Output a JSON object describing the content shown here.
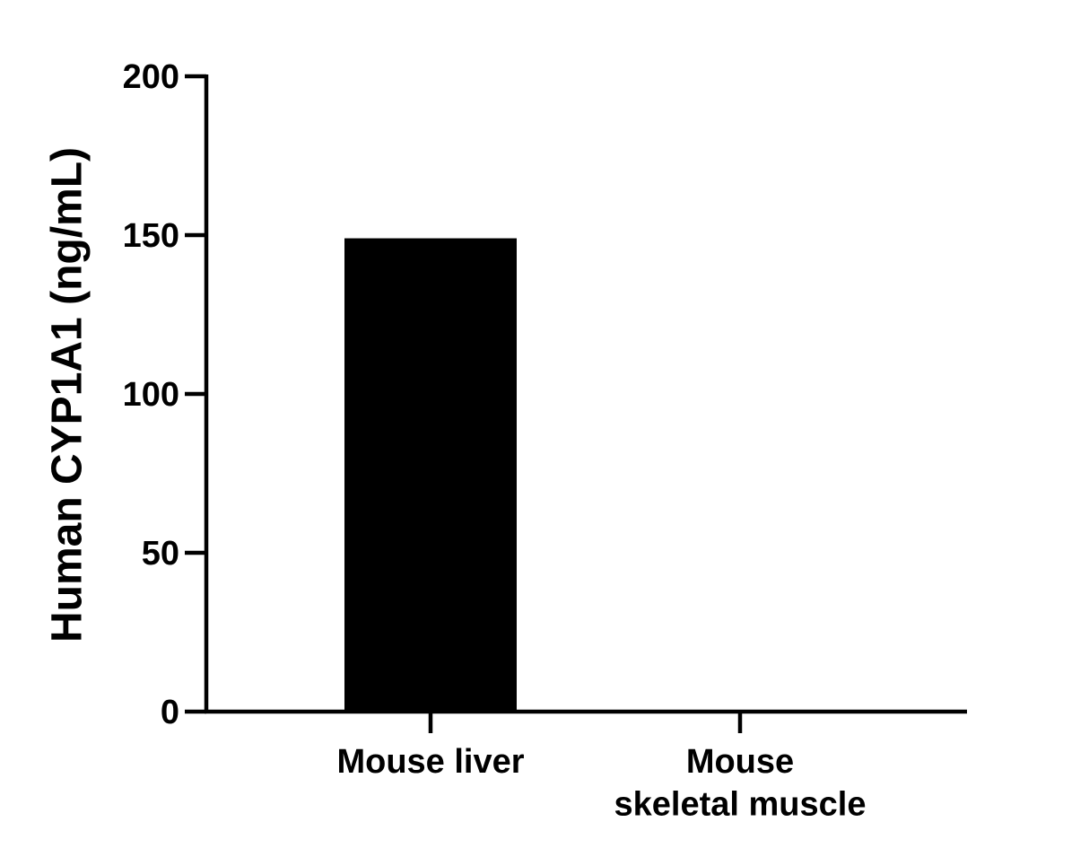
{
  "chart_data": {
    "type": "bar",
    "y_label": "Human CYP1A1 (ng/mL)",
    "categories": [
      "Mouse liver",
      "Mouse\nskeletal muscle"
    ],
    "values": [
      149,
      0
    ],
    "color": "#000000",
    "ylim": [
      0,
      200
    ],
    "yticks": [
      0,
      50,
      100,
      150,
      200
    ]
  }
}
